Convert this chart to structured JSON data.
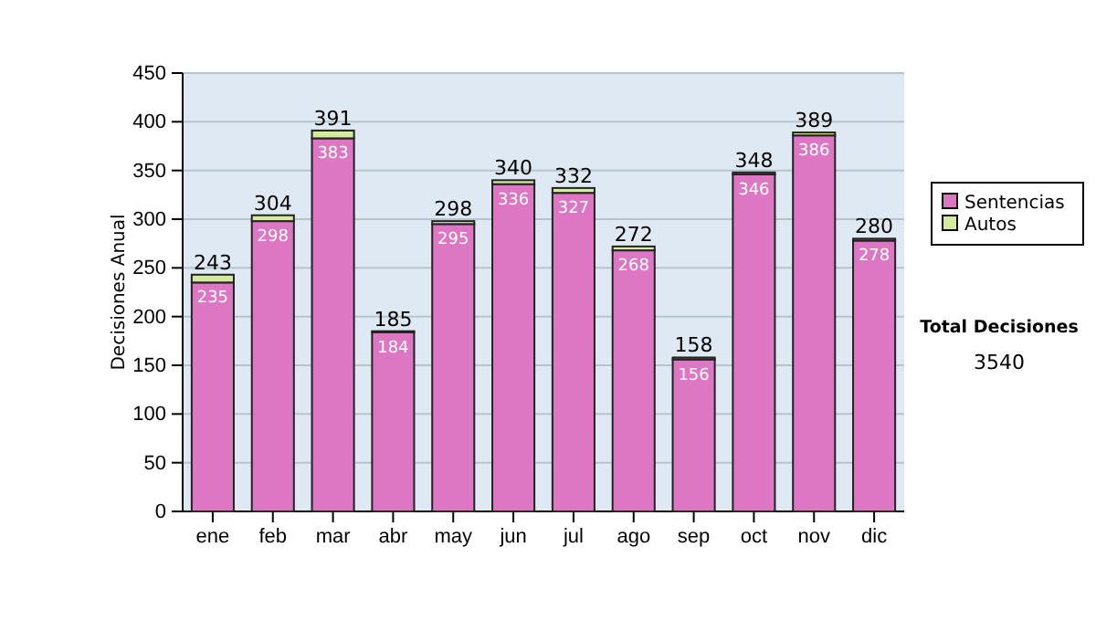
{
  "chart_data": {
    "type": "bar",
    "stacked": true,
    "ylabel": "Decisiones Anual",
    "categories": [
      "ene",
      "feb",
      "mar",
      "abr",
      "may",
      "jun",
      "jul",
      "ago",
      "sep",
      "oct",
      "nov",
      "dic"
    ],
    "series": [
      {
        "name": "Sentencias",
        "color": "#dd77c4",
        "values": [
          235,
          298,
          383,
          184,
          295,
          336,
          327,
          268,
          156,
          346,
          386,
          278
        ],
        "value_labels": [
          "235",
          "298",
          "383",
          "184",
          "295",
          "336",
          "327",
          "268",
          "156",
          "346",
          "386",
          "278"
        ]
      },
      {
        "name": "Autos",
        "color": "#d4ea9c",
        "values": [
          8,
          6,
          8,
          1,
          3,
          4,
          5,
          4,
          2,
          2,
          3,
          2
        ]
      }
    ],
    "totals": [
      "243",
      "304",
      "391",
      "185",
      "298",
      "340",
      "332",
      "272",
      "158",
      "348",
      "389",
      "280"
    ],
    "ylim": [
      0,
      450
    ],
    "yticks": [
      0,
      50,
      100,
      150,
      200,
      250,
      300,
      350,
      400,
      450
    ],
    "grid": "y",
    "legend": "right",
    "annotations": [
      "Total Decisiones",
      "3540"
    ]
  }
}
